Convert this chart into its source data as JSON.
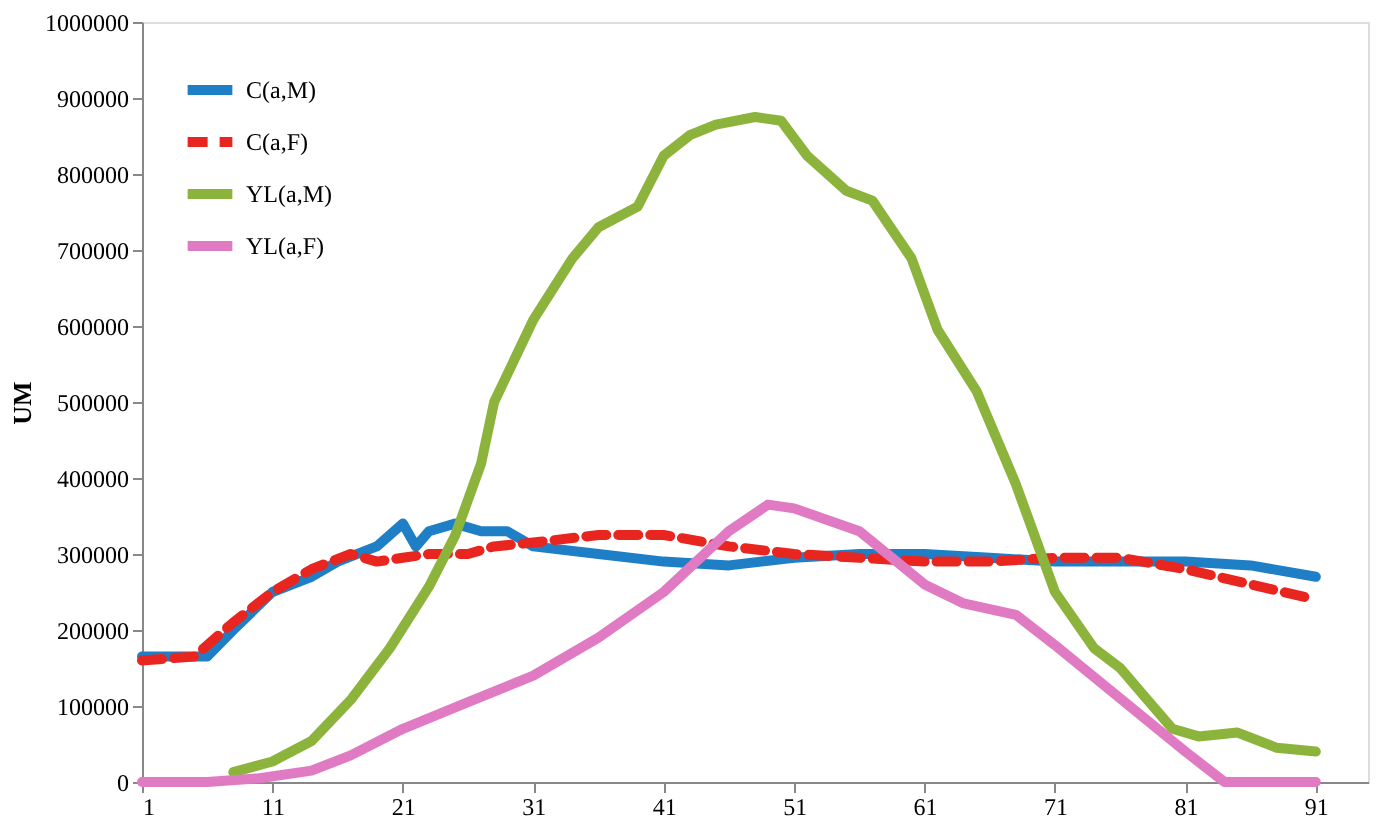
{
  "chart_data": {
    "type": "line",
    "ylabel": "UM",
    "xlim": [
      1,
      95
    ],
    "xticks": [
      1,
      11,
      21,
      31,
      41,
      51,
      61,
      71,
      81,
      91
    ],
    "ylim": [
      0,
      1000000
    ],
    "yticks": [
      0,
      100000,
      200000,
      300000,
      400000,
      500000,
      600000,
      700000,
      800000,
      900000,
      1000000
    ],
    "grid": false,
    "legend": "top left",
    "marker": "none",
    "series": [
      {
        "name": "C(a,M)",
        "color": "#1f7fc6",
        "line_style": "solid",
        "x": [
          1,
          6,
          8,
          11,
          14,
          16,
          19,
          21,
          22,
          23,
          25,
          27,
          29,
          31,
          36,
          41,
          46,
          51,
          56,
          61,
          66,
          71,
          76,
          81,
          86,
          91
        ],
        "values": [
          165000,
          165000,
          200000,
          250000,
          270000,
          290000,
          310000,
          340000,
          310000,
          330000,
          340000,
          330000,
          330000,
          310000,
          300000,
          290000,
          285000,
          295000,
          300000,
          300000,
          295000,
          290000,
          290000,
          290000,
          285000,
          270000
        ]
      },
      {
        "name": "C(a,F)",
        "color": "#e8261f",
        "line_style": "dashed",
        "x": [
          1,
          5,
          8,
          11,
          14,
          17,
          19,
          21,
          23,
          26,
          28,
          31,
          36,
          41,
          46,
          51,
          56,
          61,
          66,
          71,
          76,
          81,
          86,
          91
        ],
        "values": [
          160000,
          165000,
          210000,
          250000,
          280000,
          300000,
          290000,
          295000,
          300000,
          300000,
          310000,
          315000,
          325000,
          325000,
          310000,
          300000,
          295000,
          290000,
          290000,
          295000,
          295000,
          280000,
          260000,
          240000
        ]
      },
      {
        "name": "YL(a,M)",
        "color": "#8cb43c",
        "line_style": "solid",
        "x": [
          8,
          11,
          14,
          17,
          20,
          23,
          25,
          27,
          28,
          31,
          34,
          36,
          39,
          41,
          43,
          45,
          48,
          50,
          52,
          55,
          57,
          60,
          62,
          65,
          68,
          71,
          74,
          76,
          78,
          80,
          82,
          85,
          88,
          91
        ],
        "values": [
          13000,
          27000,
          54000,
          108000,
          176000,
          257000,
          324000,
          419000,
          500000,
          608000,
          689000,
          730000,
          757000,
          824000,
          851000,
          865000,
          875000,
          870000,
          824000,
          778000,
          765000,
          689000,
          595000,
          514000,
          392000,
          250000,
          176000,
          150000,
          110000,
          70000,
          60000,
          65000,
          45000,
          40000
        ]
      },
      {
        "name": "YL(a,F)",
        "color": "#e07bc3",
        "line_style": "solid",
        "x": [
          1,
          6,
          10,
          14,
          17,
          21,
          26,
          31,
          36,
          41,
          46,
          49,
          51,
          56,
          61,
          64,
          68,
          71,
          76,
          81,
          84,
          91
        ],
        "values": [
          0,
          0,
          5000,
          15000,
          35000,
          70000,
          105000,
          140000,
          190000,
          250000,
          330000,
          365000,
          360000,
          330000,
          260000,
          235000,
          220000,
          180000,
          110000,
          40000,
          0,
          0
        ]
      }
    ]
  }
}
